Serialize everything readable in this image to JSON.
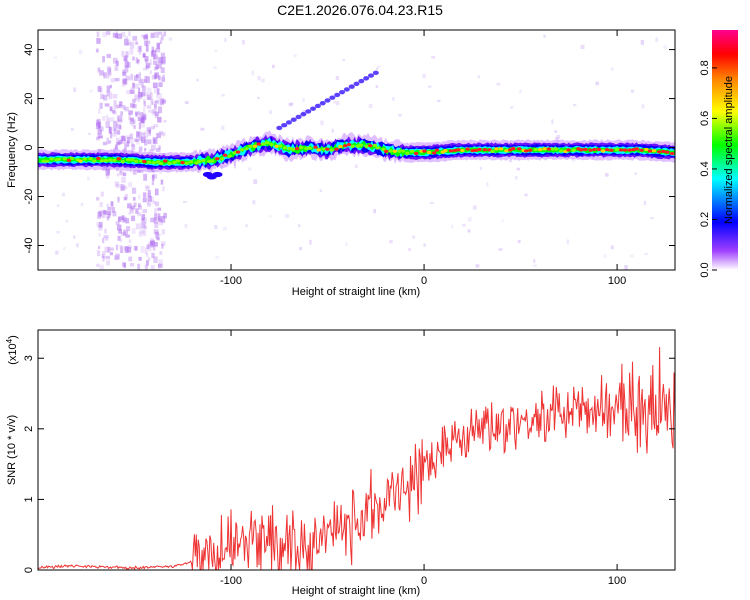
{
  "title": "C2E1.2026.076.04.23.R15",
  "chart_data": [
    {
      "type": "heatmap",
      "xlabel": "Height of straight line (km)",
      "ylabel": "Frequency (Hz)",
      "xlim": [
        -200,
        130
      ],
      "ylim": [
        -50,
        48
      ],
      "xticks": [
        -100,
        0,
        100
      ],
      "yticks": [
        -40,
        -20,
        0,
        20,
        40
      ],
      "colorbar": {
        "label": "Normalized spectral amplitude",
        "range": [
          0,
          0.95
        ],
        "ticks": [
          0.0,
          0.2,
          0.4,
          0.6,
          0.8
        ],
        "tick_labels": [
          "0.0",
          "0.2",
          "0.4",
          "0.6",
          "0.8"
        ],
        "colormap": [
          "#ffffff",
          "#8a00ff",
          "#0000ff",
          "#00ffff",
          "#00ff00",
          "#ffff00",
          "#ff8000",
          "#ff0000",
          "#ff0080"
        ]
      },
      "trace": {
        "description_points_height_km": [
          -200,
          -160,
          -140,
          -120,
          -110,
          -100,
          -90,
          -80,
          -70,
          -60,
          -50,
          -40,
          -30,
          -20,
          -10,
          0,
          20,
          50,
          80,
          110,
          130
        ],
        "center_freq_hz": [
          -5,
          -5,
          -6,
          -6,
          -5,
          -3,
          0,
          2,
          -1,
          0,
          -1,
          1,
          1,
          -1,
          -2,
          -2,
          -1,
          -1,
          -1,
          -1,
          -2
        ]
      }
    },
    {
      "type": "line",
      "xlabel": "Height of straight line (km)",
      "ylabel": "SNR (10 * v/v)",
      "y_multiplier": "(x10",
      "y_multiplier_exp": "4",
      "y_multiplier_close": ")",
      "xlim": [
        -200,
        130
      ],
      "ylim": [
        0,
        3.4
      ],
      "xticks": [
        -100,
        0,
        100
      ],
      "yticks": [
        0,
        1,
        2,
        3
      ],
      "color": "#ee3333",
      "series": [
        {
          "name": "SNR",
          "x": [
            -200,
            -185,
            -170,
            -155,
            -140,
            -130,
            -120,
            -110,
            -100,
            -90,
            -80,
            -70,
            -60,
            -50,
            -40,
            -30,
            -20,
            -10,
            0,
            10,
            20,
            30,
            40,
            50,
            60,
            70,
            80,
            90,
            100,
            110,
            120,
            130
          ],
          "y": [
            0.03,
            0.06,
            0.05,
            0.03,
            0.04,
            0.05,
            0.12,
            0.22,
            0.32,
            0.4,
            0.38,
            0.28,
            0.32,
            0.45,
            0.6,
            0.8,
            1.0,
            1.2,
            1.45,
            1.7,
            1.95,
            2.05,
            2.1,
            2.12,
            2.15,
            2.2,
            2.25,
            2.3,
            2.35,
            2.4,
            2.4,
            2.35
          ]
        }
      ]
    }
  ]
}
